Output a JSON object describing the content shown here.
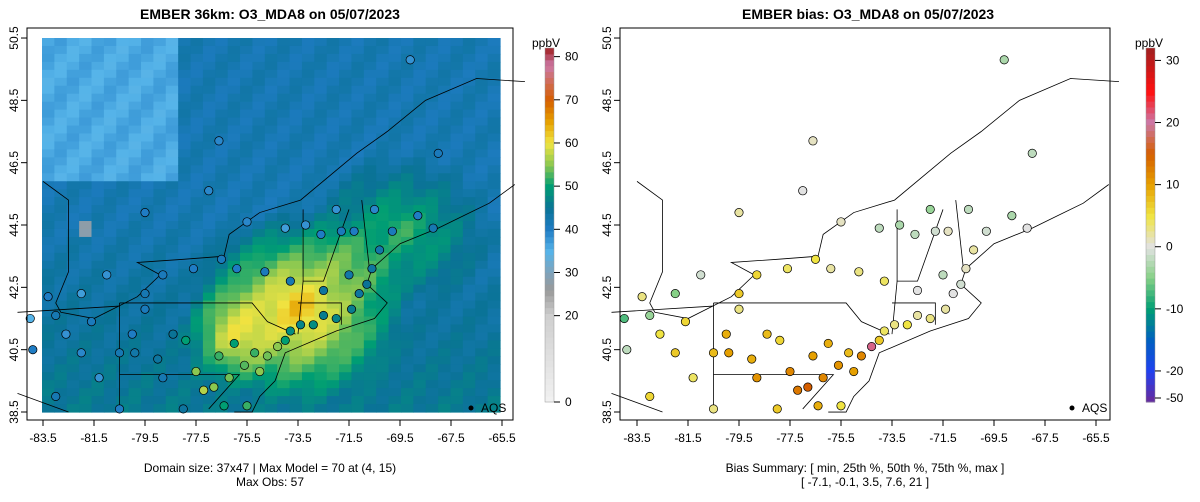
{
  "left": {
    "title": "EMBER 36km: O3_MDA8 on 05/07/2023",
    "units": "ppbV",
    "legend_label": "AQS",
    "footer1": "Domain size: 37x47 | Max Model = 70 at (4, 15)",
    "footer2": "Max Obs: 57",
    "colorbar_ticks": [
      0,
      20,
      30,
      40,
      50,
      60,
      70,
      80
    ]
  },
  "right": {
    "title": "EMBER bias: O3_MDA8 on 05/07/2023",
    "units": "ppbV",
    "legend_label": "AQS",
    "footer1": "Bias Summary: [ min, 25th %, 50th %, 75th %, max ]",
    "footer2": "[ -7.1,   -0.1,   3.5,   7.6,   21 ]",
    "colorbar_ticks": [
      -50,
      -20,
      -10,
      0,
      10,
      20,
      30
    ]
  },
  "axes": {
    "x_ticks": [
      "-83.5",
      "-81.5",
      "-79.5",
      "-77.5",
      "-75.5",
      "-73.5",
      "-71.5",
      "-69.5",
      "-67.5",
      "-65.5"
    ],
    "y_ticks": [
      "38.5",
      "40.5",
      "42.5",
      "44.5",
      "46.5",
      "48.5",
      "50.5"
    ]
  },
  "chart_data": {
    "type": "map",
    "xlim": [
      -84,
      -65
    ],
    "ylim": [
      38.5,
      50.5
    ],
    "model_range": [
      0,
      82
    ],
    "bias_range": [
      -25,
      32
    ],
    "colors_model": [
      [
        0,
        "#f2f2f2"
      ],
      [
        20,
        "#cfcfcf"
      ],
      [
        26,
        "#999999"
      ],
      [
        30,
        "#7fa3bb"
      ],
      [
        35,
        "#56b4e9"
      ],
      [
        40,
        "#1f7cc4"
      ],
      [
        45,
        "#0a7396"
      ],
      [
        50,
        "#009e73"
      ],
      [
        55,
        "#8cc850"
      ],
      [
        60,
        "#f0e442"
      ],
      [
        65,
        "#e6a000"
      ],
      [
        70,
        "#d55e00"
      ],
      [
        78,
        "#cc79a7"
      ],
      [
        82,
        "#a02020"
      ]
    ],
    "colors_bias": [
      [
        -25,
        "#6a2a9a"
      ],
      [
        -20,
        "#2040f0"
      ],
      [
        -15,
        "#0060c0"
      ],
      [
        -10,
        "#009e73"
      ],
      [
        -5,
        "#86d086"
      ],
      [
        0,
        "#e2e2e2"
      ],
      [
        5,
        "#f0e442"
      ],
      [
        10,
        "#e6a000"
      ],
      [
        15,
        "#d55e00"
      ],
      [
        20,
        "#cc79a7"
      ],
      [
        25,
        "#ff1010"
      ],
      [
        32,
        "#a02020"
      ]
    ],
    "sites": [
      [
        -83.3,
        42.2,
        40,
        3
      ],
      [
        -83.0,
        41.6,
        42,
        -4
      ],
      [
        -82.6,
        41.0,
        38,
        5
      ],
      [
        -82.0,
        40.4,
        39,
        7
      ],
      [
        -81.6,
        41.4,
        41,
        6
      ],
      [
        -81.3,
        39.6,
        38,
        4
      ],
      [
        -80.5,
        40.4,
        42,
        8
      ],
      [
        -80.0,
        41.0,
        40,
        9
      ],
      [
        -79.9,
        40.4,
        43,
        10
      ],
      [
        -79.5,
        41.8,
        41,
        3
      ],
      [
        -79.0,
        40.2,
        44,
        9
      ],
      [
        -78.8,
        39.6,
        42,
        11
      ],
      [
        -78.4,
        41.0,
        45,
        8
      ],
      [
        -77.9,
        40.8,
        50,
        6
      ],
      [
        -77.5,
        39.8,
        55,
        12
      ],
      [
        -77.2,
        39.2,
        57,
        13
      ],
      [
        -76.8,
        39.3,
        55,
        15
      ],
      [
        -76.6,
        40.3,
        52,
        10
      ],
      [
        -76.2,
        39.6,
        54,
        12
      ],
      [
        -76.0,
        40.7,
        50,
        9
      ],
      [
        -75.6,
        40.0,
        53,
        11
      ],
      [
        -75.2,
        40.4,
        52,
        8
      ],
      [
        -75.0,
        39.8,
        55,
        10
      ],
      [
        -74.7,
        40.3,
        54,
        12
      ],
      [
        -74.3,
        40.6,
        55,
        21
      ],
      [
        -74.0,
        40.8,
        50,
        7
      ],
      [
        -73.8,
        41.1,
        48,
        4
      ],
      [
        -73.4,
        41.3,
        47,
        3
      ],
      [
        -72.9,
        41.3,
        48,
        5
      ],
      [
        -72.5,
        41.6,
        46,
        2
      ],
      [
        -72.0,
        41.5,
        47,
        3
      ],
      [
        -71.4,
        41.8,
        46,
        2
      ],
      [
        -71.1,
        42.3,
        44,
        0
      ],
      [
        -70.8,
        42.6,
        45,
        -1
      ],
      [
        -70.6,
        43.1,
        44,
        1
      ],
      [
        -71.5,
        42.9,
        43,
        -2
      ],
      [
        -72.5,
        42.4,
        44,
        0
      ],
      [
        -73.8,
        42.7,
        42,
        4
      ],
      [
        -74.8,
        43.0,
        41,
        3
      ],
      [
        -75.9,
        43.1,
        40,
        2
      ],
      [
        -76.5,
        43.4,
        41,
        5
      ],
      [
        -77.6,
        43.1,
        40,
        4
      ],
      [
        -78.8,
        42.9,
        41,
        6
      ],
      [
        -79.5,
        42.3,
        42,
        7
      ],
      [
        -73.2,
        44.5,
        38,
        -3
      ],
      [
        -72.6,
        44.2,
        40,
        -2
      ],
      [
        -71.8,
        44.3,
        41,
        -1
      ],
      [
        -71.3,
        44.3,
        40,
        1
      ],
      [
        -70.3,
        43.7,
        43,
        2
      ],
      [
        -69.8,
        44.3,
        41,
        -1
      ],
      [
        -68.8,
        44.8,
        40,
        -3
      ],
      [
        -68.2,
        44.4,
        42,
        0
      ],
      [
        -70.5,
        45.0,
        39,
        -2
      ],
      [
        -72.0,
        45.0,
        38,
        -4
      ],
      [
        -75.5,
        44.6,
        39,
        1
      ],
      [
        -74.0,
        44.4,
        37,
        -2
      ],
      [
        -77.0,
        45.6,
        39,
        0
      ],
      [
        -79.5,
        44.9,
        40,
        2
      ],
      [
        -81.0,
        42.9,
        38,
        -1
      ],
      [
        -82.0,
        42.3,
        37,
        -5
      ],
      [
        -83.0,
        39.0,
        42,
        6
      ],
      [
        -80.5,
        38.6,
        40,
        3
      ],
      [
        -78.0,
        38.6,
        44,
        7
      ],
      [
        -76.4,
        38.7,
        50,
        9
      ],
      [
        -75.5,
        38.7,
        52,
        5
      ],
      [
        -84.0,
        41.5,
        35,
        -7
      ],
      [
        -83.9,
        40.5,
        40,
        -2
      ],
      [
        -68.0,
        46.8,
        41,
        -2
      ],
      [
        -69.1,
        49.8,
        38,
        -3
      ],
      [
        -76.6,
        47.2,
        39,
        1
      ]
    ]
  }
}
